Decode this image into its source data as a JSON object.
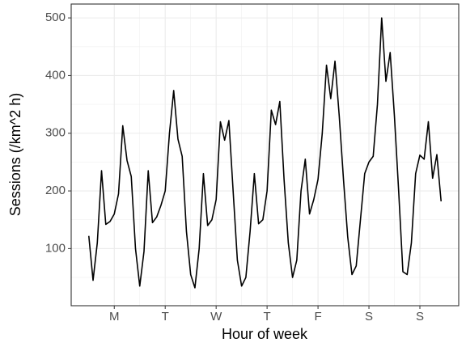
{
  "chart_data": {
    "type": "line",
    "x_label": "Hour of week",
    "y_label": "Sessions (/km^2 h)",
    "x": [
      0,
      2,
      4,
      6,
      8,
      10,
      12,
      14,
      16,
      18,
      20,
      22,
      24,
      26,
      28,
      30,
      32,
      34,
      36,
      38,
      40,
      42,
      44,
      46,
      48,
      50,
      52,
      54,
      56,
      58,
      60,
      62,
      64,
      66,
      68,
      70,
      72,
      74,
      76,
      78,
      80,
      82,
      84,
      86,
      88,
      90,
      92,
      94,
      96,
      98,
      100,
      102,
      104,
      106,
      108,
      110,
      112,
      114,
      116,
      118,
      120,
      122,
      124,
      126,
      128,
      130,
      132,
      134,
      136,
      138,
      140,
      142,
      144,
      146,
      148,
      150,
      152,
      154,
      156,
      158,
      160,
      162,
      164,
      166
    ],
    "series": [
      {
        "color": "#000000",
        "values": [
          122,
          45,
          110,
          235,
          142,
          147,
          160,
          195,
          313,
          253,
          225,
          100,
          35,
          95,
          235,
          145,
          155,
          175,
          200,
          300,
          374,
          290,
          260,
          130,
          55,
          32,
          100,
          230,
          140,
          150,
          185,
          320,
          288,
          322,
          200,
          80,
          35,
          50,
          130,
          230,
          143,
          150,
          200,
          340,
          315,
          355,
          220,
          110,
          50,
          80,
          200,
          255,
          160,
          185,
          220,
          300,
          418,
          360,
          425,
          330,
          220,
          120,
          55,
          70,
          150,
          230,
          250,
          260,
          350,
          500,
          390,
          440,
          330,
          200,
          60,
          55,
          110,
          230,
          262,
          255,
          320,
          222,
          263,
          182
        ]
      }
    ],
    "xlim": [
      -8.3,
      174.3
    ],
    "xticks": [
      {
        "value": 12,
        "label": "M"
      },
      {
        "value": 36,
        "label": "T"
      },
      {
        "value": 60,
        "label": "W"
      },
      {
        "value": 84,
        "label": "T"
      },
      {
        "value": 108,
        "label": "F"
      },
      {
        "value": 132,
        "label": "S"
      },
      {
        "value": 156,
        "label": "S"
      }
    ],
    "ylim": [
      1,
      524
    ],
    "yticks": [
      100,
      200,
      300,
      400,
      500
    ],
    "grid": true
  }
}
